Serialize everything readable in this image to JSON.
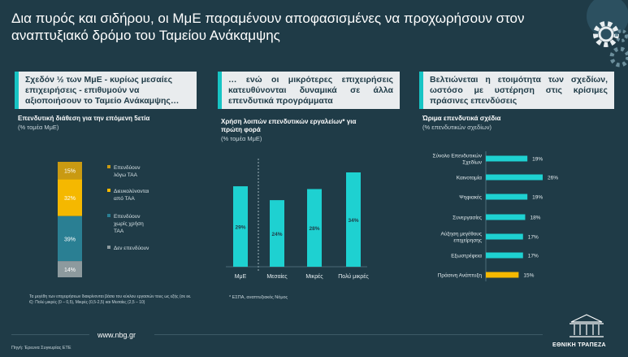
{
  "slide": {
    "title": "Δια πυρός και σιδήρου, οι ΜμΕ παραμένουν αποφασισμένες να προχωρήσουν στον αναπτυξιακό δρόμο του Ταμείου Ανάκαμψης",
    "url": "www.nbg.gr",
    "source": "Πηγή: Έρευνα Συγκυρίας ΕΤΕ",
    "bank_name": "ΕΘΝΙΚΗ ΤΡΑΠΕΖΑ"
  },
  "panels": [
    {
      "heading": "Σχεδόν ½ των ΜμΕ - κυρίως μεσαίες επιχειρήσεις - επιθυμούν να αξιοποιήσουν το Ταμείο Ανάκαμψης…"
    },
    {
      "heading": "… ενώ οι μικρότερες επιχειρήσεις κατευθύνονται δυναμικά σε άλλα επενδυτικά προγράμματα"
    },
    {
      "heading": "Βελτιώνεται η ετοιμότητα των σχεδίων, ωστόσο με υστέρηση στις κρίσιμες πράσινες επενδύσεις"
    }
  ],
  "chart_data": [
    {
      "type": "bar",
      "stacked": true,
      "title": "Επενδυτική διάθεση για την επόμενη 5ετία",
      "subtitle": "(% τομέα ΜμΕ)",
      "series": [
        {
          "name": "Επενδύουν λόγω ΤΑΑ",
          "value": 15,
          "label": "15%",
          "color": "#c99a12"
        },
        {
          "name": "Διευκολύνονται από ΤΑΑ",
          "value": 32,
          "label": "32%",
          "color": "#f5b800"
        },
        {
          "name": "Επενδύουν χωρίς χρήση ΤΑΑ",
          "value": 39,
          "label": "39%",
          "color": "#2a7f93"
        },
        {
          "name": "Δεν επενδύουν",
          "value": 14,
          "label": "14%",
          "color": "#8d9a9e"
        }
      ],
      "legend": [
        {
          "name": "Επενδύουν λόγω ΤΑΑ",
          "lines": [
            "Επενδύουν",
            "λόγω ΤΑΑ"
          ],
          "color": "#c99a12"
        },
        {
          "name": "Διευκολύνονται από ΤΑΑ",
          "lines": [
            "Διευκολύνονται",
            "από ΤΑΑ"
          ],
          "color": "#f5b800"
        },
        {
          "name": "Επενδύουν χωρίς χρήση ΤΑΑ",
          "lines": [
            "Επενδύουν",
            "χωρίς χρήση",
            "ΤΑΑ"
          ],
          "color": "#2a7f93"
        },
        {
          "name": "Δεν επενδύουν",
          "lines": [
            "Δεν επενδύουν"
          ],
          "color": "#8d9a9e"
        }
      ],
      "footnote": "Τα μεγέθη των επιχειρήσεων διακρίνονται βάσει του κύκλου εργασιών τους ως εξής (σε εκ. €): Πολύ μικρές (0 – 0,5), Μικρές (0,5-2,5) και Μεσαίες (2,5 – 10)"
    },
    {
      "type": "bar",
      "title": "Χρήση λοιπών επενδυτικών εργαλείων* για πρώτη φορά",
      "subtitle": "(% τομέα ΜμΕ)",
      "categories": [
        "ΜμΕ",
        "Μεσαίες",
        "Μικρές",
        "Πολύ μικρές"
      ],
      "values": [
        29,
        24,
        28,
        34
      ],
      "labels": [
        "29%",
        "24%",
        "28%",
        "34%"
      ],
      "color": "#1ed1d1",
      "footnote": "* ΕΣΠΑ, αναπτυξιακός Νόμος"
    },
    {
      "type": "bar",
      "orientation": "horizontal",
      "title": "Ώριμα επενδυτικά σχέδια",
      "subtitle": "(% επενδυτικών σχεδίων)",
      "categories": [
        "Σύνολο Επενδυτικών Σχεδίων",
        "Καινοτομία",
        "Ψηφιακές",
        "Συνεργασίες",
        "Αύξηση μεγέθους επιχείρησης",
        "Εξωστρέφεια",
        "Πράσινη Ανάπτυξη"
      ],
      "category_lines": [
        [
          "Σύνολο Επενδυτικών",
          "Σχεδίων"
        ],
        [
          "Καινοτομία"
        ],
        [
          "Ψηφιακές"
        ],
        [
          "Συνεργασίες"
        ],
        [
          "Αύξηση μεγέθους",
          "επιχείρησης"
        ],
        [
          "Εξωστρέφεια"
        ],
        [
          "Πράσινη Ανάπτυξη"
        ]
      ],
      "values": [
        19,
        26,
        19,
        18,
        17,
        17,
        15
      ],
      "labels": [
        "19%",
        "26%",
        "19%",
        "18%",
        "17%",
        "17%",
        "15%"
      ],
      "colors": [
        "#1ed1d1",
        "#1ed1d1",
        "#1ed1d1",
        "#1ed1d1",
        "#1ed1d1",
        "#1ed1d1",
        "#f5b800"
      ]
    }
  ]
}
